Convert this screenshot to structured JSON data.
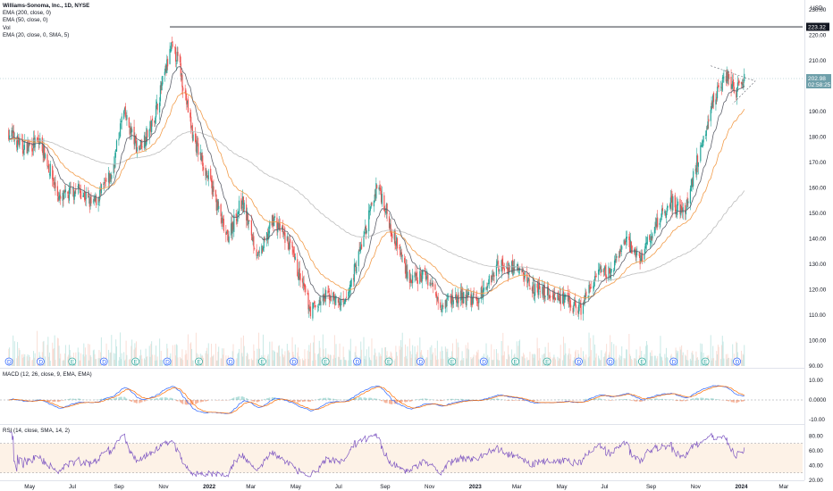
{
  "legend": {
    "title": "Williams-Sonoma, Inc., 1D, NYSE",
    "ema200": "EMA (200, close, 0)",
    "ema50": "EMA (50, close, 0)",
    "vol": "Vol",
    "ema20": "EMA (20, close, 0, SMA, 5)"
  },
  "macd_legend": "MACD (12, 26, close, 9, EMA, EMA)",
  "rsi_legend": "RSI (14, close, SMA, 14, 2)",
  "currency": "USD",
  "colors": {
    "up": "#26a69a",
    "down": "#ef5350",
    "ema200": "#bdbdbd",
    "ema50": "#f29c4a",
    "ema20": "#5d606b",
    "macd": "#2962ff",
    "signal": "#ff6d00",
    "rsi": "#7e57c2",
    "rsi_band": "#fbe9d7",
    "price_badge": "#6e9faa",
    "resistance": "#131722"
  },
  "chart_data": {
    "type": "candlestick",
    "price_axis": {
      "ticks": [
        "230.00",
        "220.00",
        "210.00",
        "200.00",
        "190.00",
        "180.00",
        "170.00",
        "160.00",
        "150.00",
        "140.00",
        "130.00",
        "120.00",
        "110.00",
        "100.00",
        "90.00"
      ],
      "ylim": [
        90,
        230
      ]
    },
    "x_ticks": [
      "May",
      "Jul",
      "Sep",
      "Nov",
      "2022",
      "Mar",
      "May",
      "Jul",
      "Sep",
      "Nov",
      "2023",
      "Mar",
      "May",
      "Jul",
      "Sep",
      "Nov",
      "2024",
      "Mar"
    ],
    "resistance_level": "223.32",
    "last_price": "202.98",
    "countdown": "02:58:25",
    "close_series": [
      {
        "t": "2021-04-01",
        "close": 182
      },
      {
        "t": "2021-04-20",
        "close": 176
      },
      {
        "t": "2021-05-15",
        "close": 178
      },
      {
        "t": "2021-06-10",
        "close": 155
      },
      {
        "t": "2021-07-05",
        "close": 160
      },
      {
        "t": "2021-07-25",
        "close": 153
      },
      {
        "t": "2021-08-20",
        "close": 165
      },
      {
        "t": "2021-09-05",
        "close": 190
      },
      {
        "t": "2021-09-25",
        "close": 175
      },
      {
        "t": "2021-10-15",
        "close": 185
      },
      {
        "t": "2021-11-10",
        "close": 215
      },
      {
        "t": "2021-11-20",
        "close": 210
      },
      {
        "t": "2021-12-10",
        "close": 180
      },
      {
        "t": "2022-01-05",
        "close": 160
      },
      {
        "t": "2022-01-25",
        "close": 140
      },
      {
        "t": "2022-02-15",
        "close": 155
      },
      {
        "t": "2022-03-10",
        "close": 132
      },
      {
        "t": "2022-03-30",
        "close": 148
      },
      {
        "t": "2022-04-20",
        "close": 138
      },
      {
        "t": "2022-05-20",
        "close": 112
      },
      {
        "t": "2022-06-15",
        "close": 118
      },
      {
        "t": "2022-07-05",
        "close": 113
      },
      {
        "t": "2022-08-05",
        "close": 145
      },
      {
        "t": "2022-08-20",
        "close": 162
      },
      {
        "t": "2022-09-10",
        "close": 142
      },
      {
        "t": "2022-10-05",
        "close": 123
      },
      {
        "t": "2022-10-25",
        "close": 126
      },
      {
        "t": "2022-11-15",
        "close": 115
      },
      {
        "t": "2022-12-10",
        "close": 117
      },
      {
        "t": "2023-01-05",
        "close": 116
      },
      {
        "t": "2023-02-01",
        "close": 130
      },
      {
        "t": "2023-03-01",
        "close": 128
      },
      {
        "t": "2023-03-25",
        "close": 120
      },
      {
        "t": "2023-04-20",
        "close": 118
      },
      {
        "t": "2023-05-25",
        "close": 112
      },
      {
        "t": "2023-06-15",
        "close": 125
      },
      {
        "t": "2023-07-10",
        "close": 128
      },
      {
        "t": "2023-07-25",
        "close": 140
      },
      {
        "t": "2023-08-15",
        "close": 132
      },
      {
        "t": "2023-09-05",
        "close": 145
      },
      {
        "t": "2023-09-25",
        "close": 155
      },
      {
        "t": "2023-10-15",
        "close": 150
      },
      {
        "t": "2023-11-01",
        "close": 170
      },
      {
        "t": "2023-11-20",
        "close": 192
      },
      {
        "t": "2023-12-10",
        "close": 205
      },
      {
        "t": "2023-12-25",
        "close": 198
      },
      {
        "t": "2024-01-05",
        "close": 202
      }
    ],
    "macd_axis": {
      "ticks": [
        "10.00",
        "0.0000",
        "-10.00"
      ]
    },
    "rsi_axis": {
      "ticks": [
        "80.00",
        "60.00",
        "40.00",
        "20.00"
      ]
    },
    "earnings_markers": [
      "D",
      "D",
      "E",
      "D",
      "E",
      "D",
      "E",
      "D",
      "E",
      "D",
      "E",
      "D",
      "E",
      "D",
      "E",
      "D",
      "E",
      "E",
      "D",
      "D",
      "E",
      "D",
      "E",
      "D"
    ]
  }
}
